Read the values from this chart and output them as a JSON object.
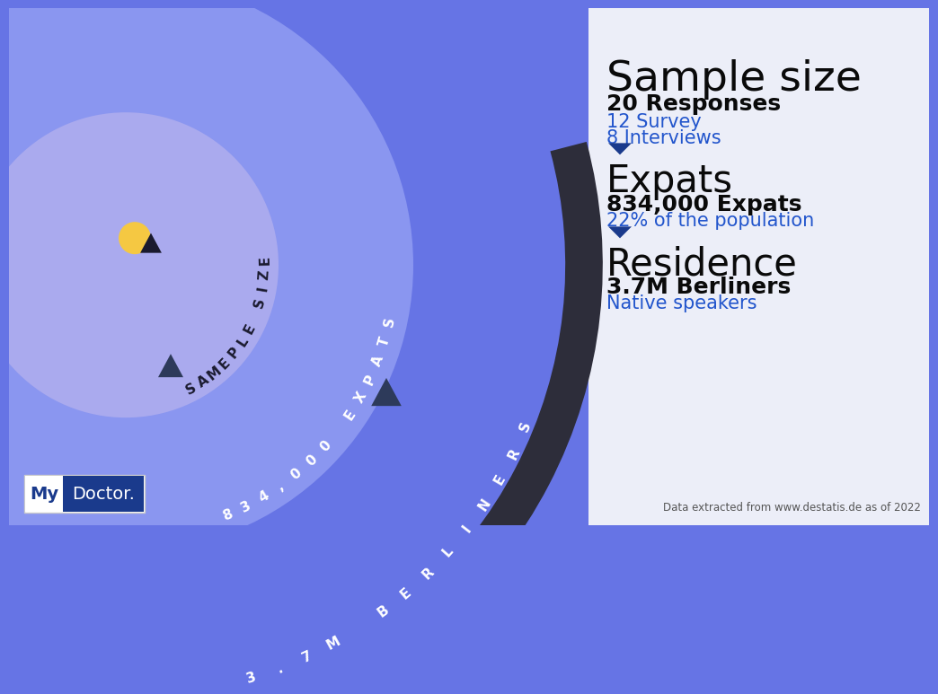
{
  "bg_left": "#6674E5",
  "bg_right": "#ECEEF8",
  "circle_mid_color": "#8A96F0",
  "circle_inner_color": "#AAAAEE",
  "dark_arc_color": "#2D2D3A",
  "title": "Sample size",
  "title_fontsize": 34,
  "section1_bold": "20 Responses",
  "section1_detail1": "12 Survey",
  "section1_detail2": "8 Interviews",
  "section2_title": "Expats",
  "section2_bold": "834,000 Expats",
  "section2_detail": "22% of the population",
  "section3_title": "Residence",
  "section3_bold": "3.7M Berliners",
  "section3_detail": "Native speakers",
  "arrow_color": "#1A3A8C",
  "bold_color": "#0A0A0A",
  "blue_text_color": "#2255CC",
  "section_title_size": 30,
  "bold_text_size": 18,
  "detail_text_size": 15,
  "circle_label1": "SAMEPLE SIZE",
  "circle_label2": "834,000 EXPATS",
  "circle_label3": "3.7M BERLINERS",
  "footnote": "Data extracted from www.destatis.de as of 2022",
  "logo_text1": "My",
  "logo_text2": "Doctor.",
  "logo_bg1": "#FFFFFF",
  "logo_bg2": "#1A3A8C",
  "logo_text_color1": "#1A3A8C",
  "logo_text_color2": "#FFFFFF"
}
